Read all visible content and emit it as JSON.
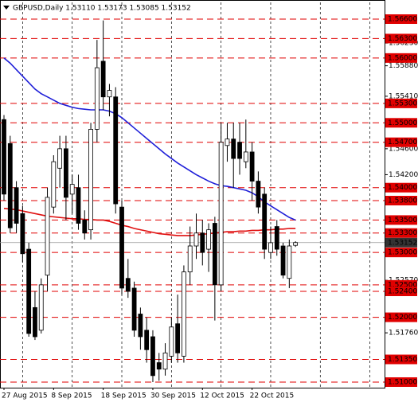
{
  "chart_data": {
    "type": "candlestick",
    "title": "GBPUSD,Daily  1.53110 1.53173 1.53085 1.53152",
    "categories": [
      "27 Aug 2015",
      null,
      null,
      null,
      null,
      null,
      null,
      null,
      "8 Sep 2015",
      null,
      null,
      null,
      null,
      null,
      null,
      null,
      "18 Sep 2015",
      null,
      null,
      null,
      null,
      null,
      null,
      null,
      "30 Sep 2015",
      null,
      null,
      null,
      null,
      null,
      null,
      null,
      "12 Oct 2015",
      null,
      null,
      null,
      null,
      null,
      null,
      null,
      "22 Oct 2015",
      null,
      null,
      null,
      null,
      null,
      null,
      null
    ],
    "open": [
      1.5505,
      1.5468,
      1.54,
      1.536,
      1.5305,
      1.5215,
      1.518,
      1.5265,
      1.537,
      1.543,
      1.546,
      1.539,
      1.54,
      1.535,
      1.5335,
      1.549,
      1.5595,
      1.554,
      1.554,
      1.537,
      1.526,
      1.5245,
      1.5205,
      1.518,
      1.517,
      1.513,
      1.512,
      1.514,
      1.519,
      1.514,
      1.527,
      1.531,
      1.533,
      1.5305,
      1.5345,
      1.525,
      1.5465,
      1.5475,
      1.547,
      1.544,
      1.5455,
      1.541,
      1.539,
      1.53,
      1.534,
      1.531,
      1.526,
      1.5311
    ],
    "high": [
      1.5512,
      1.548,
      1.541,
      1.5372,
      1.5315,
      1.524,
      1.526,
      1.54,
      1.545,
      1.548,
      1.548,
      1.542,
      1.542,
      1.5365,
      1.55,
      1.5628,
      1.5658,
      1.556,
      1.5555,
      1.538,
      1.529,
      1.5255,
      1.5215,
      1.52,
      1.518,
      1.5145,
      1.516,
      1.52,
      1.5235,
      1.528,
      1.534,
      1.536,
      1.535,
      1.5345,
      1.5355,
      1.55,
      1.55,
      1.55,
      1.55,
      1.5505,
      1.547,
      1.5425,
      1.54,
      1.534,
      1.535,
      1.5315,
      1.532,
      1.53173
    ],
    "low": [
      1.538,
      1.533,
      1.533,
      1.5285,
      1.517,
      1.5165,
      1.5175,
      1.524,
      1.536,
      1.54,
      1.535,
      1.536,
      1.5335,
      1.532,
      1.532,
      1.547,
      1.552,
      1.551,
      1.536,
      1.5235,
      1.523,
      1.517,
      1.515,
      1.513,
      1.51,
      1.5102,
      1.511,
      1.513,
      1.513,
      1.513,
      1.525,
      1.529,
      1.528,
      1.527,
      1.5195,
      1.524,
      1.544,
      1.54,
      1.542,
      1.543,
      1.538,
      1.536,
      1.529,
      1.529,
      1.5295,
      1.526,
      1.5245,
      1.53085
    ],
    "close": [
      1.539,
      1.5338,
      1.5345,
      1.5298,
      1.5175,
      1.517,
      1.525,
      1.5385,
      1.544,
      1.546,
      1.5385,
      1.5405,
      1.5345,
      1.533,
      1.549,
      1.5585,
      1.554,
      1.555,
      1.5375,
      1.5245,
      1.524,
      1.518,
      1.517,
      1.515,
      1.511,
      1.512,
      1.5145,
      1.5185,
      1.5145,
      1.527,
      1.531,
      1.533,
      1.53,
      1.5335,
      1.525,
      1.547,
      1.5475,
      1.5445,
      1.5445,
      1.5455,
      1.541,
      1.537,
      1.5305,
      1.5315,
      1.5305,
      1.5265,
      1.531,
      1.53152
    ],
    "lines": [
      {
        "color": "#1f1fd8",
        "values": [
          1.56,
          1.5592,
          1.5582,
          1.5572,
          1.5562,
          1.5552,
          1.5545,
          1.554,
          1.5535,
          1.553,
          1.5527,
          1.5524,
          1.5522,
          1.5521,
          1.552,
          1.552,
          1.552,
          1.5518,
          1.5514,
          1.5508,
          1.55,
          1.5492,
          1.5484,
          1.5476,
          1.5468,
          1.546,
          1.5452,
          1.5445,
          1.5438,
          1.5432,
          1.5426,
          1.542,
          1.5415,
          1.541,
          1.5406,
          1.5403,
          1.5402,
          1.54,
          1.5398,
          1.5396,
          1.5392,
          1.5386,
          1.5378,
          1.5372,
          1.5366,
          1.536,
          1.5354,
          1.535
        ]
      },
      {
        "color": "#e01010",
        "values": [
          1.5368,
          1.5367,
          1.5366,
          1.5364,
          1.5362,
          1.536,
          1.5358,
          1.5356,
          1.5355,
          1.5354,
          1.5353,
          1.5352,
          1.5352,
          1.5351,
          1.5351,
          1.535,
          1.535,
          1.5348,
          1.5345,
          1.5342,
          1.534,
          1.5337,
          1.5335,
          1.5333,
          1.5331,
          1.5329,
          1.5328,
          1.5327,
          1.5326,
          1.5326,
          1.5326,
          1.5327,
          1.5328,
          1.5329,
          1.533,
          1.5331,
          1.5332,
          1.5332,
          1.5333,
          1.5333,
          1.5334,
          1.5334,
          1.5335,
          1.5335,
          1.5336,
          1.5336,
          1.5337,
          1.5337
        ]
      }
    ],
    "ylim": [
      1.50914,
      1.56858
    ],
    "yticks": [
      {
        "value": 1.5623,
        "label": "1.56230"
      },
      {
        "value": 1.5588,
        "label": "1.55880"
      },
      {
        "value": 1.5541,
        "label": "1.55410"
      },
      {
        "value": 1.546,
        "label": "1.54600"
      },
      {
        "value": 1.542,
        "label": "1.54200"
      },
      {
        "value": 1.5257,
        "label": "1.52570"
      },
      {
        "value": 1.5176,
        "label": "1.51760"
      }
    ],
    "levels": [
      {
        "value": 1.566,
        "label": "1.56600"
      },
      {
        "value": 1.563,
        "label": "1.56300"
      },
      {
        "value": 1.56,
        "label": "1.56000"
      },
      {
        "value": 1.553,
        "label": "1.55300"
      },
      {
        "value": 1.55,
        "label": "1.55000"
      },
      {
        "value": 1.547,
        "label": "1.54700"
      },
      {
        "value": 1.54,
        "label": "1.54000"
      },
      {
        "value": 1.538,
        "label": "1.53800"
      },
      {
        "value": 1.535,
        "label": "1.53500"
      },
      {
        "value": 1.533,
        "label": "1.53300"
      },
      {
        "value": 1.53,
        "label": "1.53000"
      },
      {
        "value": 1.525,
        "label": "1.52500"
      },
      {
        "value": 1.524,
        "label": "1.52400"
      },
      {
        "value": 1.52,
        "label": "1.52000"
      },
      {
        "value": 1.5135,
        "label": "1.51350"
      },
      {
        "value": 1.51,
        "label": "1.51000"
      }
    ],
    "level_color": "#e00000",
    "current_price": 1.53152
  }
}
